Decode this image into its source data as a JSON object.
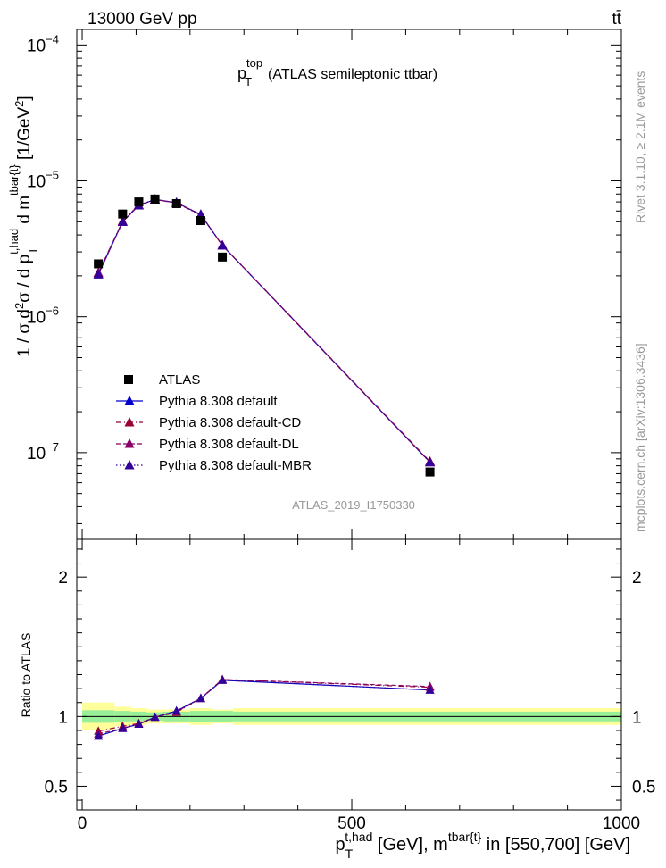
{
  "header": {
    "left": "13000 GeV pp",
    "right": "tt̄"
  },
  "side_text": {
    "rivet": "Rivet 3.1.10, ≥ 2.1M events",
    "mcplots": "mcplots.cern.ch [arXiv:1306.3436]"
  },
  "colors": {
    "data": "#000000",
    "default": "#0000cc",
    "cd": "#990033",
    "dl": "#880066",
    "mbr": "#330099",
    "band_inner": "#99ee99",
    "band_outer": "#ffff99",
    "watermark": "#999999"
  },
  "chart_data": [
    {
      "type": "scatter",
      "title_main": "p",
      "title_sup": "top",
      "title_sub": "T",
      "title_rest": "(ATLAS semileptonic ttbar)",
      "watermark": "ATLAS_2019_I1750330",
      "ylabel": "1 / σ d²σ / d p_T^{t,had} d m^{tbar{t}} [1/GeV²]",
      "yscale": "log",
      "ylim": [
        2.3e-08,
        0.00013
      ],
      "xlim": [
        -10,
        1000
      ],
      "y_ticks": [
        {
          "value": 0.0001,
          "label": "10",
          "exp": "−4"
        },
        {
          "value": 1e-05,
          "label": "10",
          "exp": "−5"
        },
        {
          "value": 1e-06,
          "label": "10",
          "exp": "−6"
        },
        {
          "value": 1e-07,
          "label": "10",
          "exp": "−7"
        }
      ],
      "legend_position": "middle-left",
      "series": [
        {
          "name": "ATLAS",
          "color": "#000000",
          "marker": "square",
          "x": [
            30,
            75,
            105,
            135,
            175,
            220,
            260,
            645
          ],
          "y": [
            2.45e-06,
            5.7e-06,
            7e-06,
            7.35e-06,
            6.8e-06,
            5.1e-06,
            2.75e-06,
            7.2e-08
          ]
        },
        {
          "name": "Pythia 8.308 default",
          "color": "#0000cc",
          "line": "solid",
          "marker": "triangle",
          "x": [
            30,
            75,
            105,
            135,
            175,
            220,
            260,
            645
          ],
          "y": [
            2.05e-06,
            5e-06,
            6.6e-06,
            7.3e-06,
            6.9e-06,
            5.65e-06,
            3.35e-06,
            8.5e-08
          ]
        },
        {
          "name": "Pythia 8.308 default-CD",
          "color": "#990033",
          "line": "dashdot",
          "marker": "triangle",
          "x": [
            30,
            75,
            105,
            135,
            175,
            220,
            260,
            645
          ],
          "y": [
            2.1e-06,
            5.05e-06,
            6.65e-06,
            7.3e-06,
            6.85e-06,
            5.6e-06,
            3.35e-06,
            8.6e-08
          ]
        },
        {
          "name": "Pythia 8.308 default-DL",
          "color": "#880066",
          "line": "dashed",
          "marker": "triangle",
          "x": [
            30,
            75,
            105,
            135,
            175,
            220,
            260,
            645
          ],
          "y": [
            2.1e-06,
            5e-06,
            6.6e-06,
            7.3e-06,
            6.9e-06,
            5.6e-06,
            3.35e-06,
            8.5e-08
          ]
        },
        {
          "name": "Pythia 8.308 default-MBR",
          "color": "#330099",
          "line": "dotted",
          "marker": "triangle",
          "x": [
            30,
            75,
            105,
            135,
            175,
            220,
            260,
            645
          ],
          "y": [
            2.05e-06,
            5e-06,
            6.6e-06,
            7.3e-06,
            6.9e-06,
            5.65e-06,
            3.35e-06,
            8.5e-08
          ]
        }
      ]
    },
    {
      "type": "line",
      "ylabel": "Ratio to ATLAS",
      "xlabel": "p_T^{t,had} [GeV], m^{tbar{t}} in [550,700] [GeV]",
      "xlim": [
        -10,
        1000
      ],
      "ylim": [
        0.33,
        2.27
      ],
      "x_ticks": [
        0,
        500,
        1000
      ],
      "y_ticks": [
        0.5,
        1,
        2
      ],
      "bands": {
        "edges": [
          0,
          60,
          90,
          120,
          150,
          200,
          240,
          280,
          1000
        ],
        "inner": [
          [
            0.955,
            1.045
          ],
          [
            0.96,
            1.04
          ],
          [
            0.965,
            1.035
          ],
          [
            0.97,
            1.03
          ],
          [
            0.965,
            1.035
          ],
          [
            0.96,
            1.04
          ],
          [
            0.96,
            1.04
          ],
          [
            0.965,
            1.035
          ]
        ],
        "outer": [
          [
            0.9,
            1.1
          ],
          [
            0.93,
            1.07
          ],
          [
            0.94,
            1.06
          ],
          [
            0.95,
            1.05
          ],
          [
            0.95,
            1.05
          ],
          [
            0.94,
            1.06
          ],
          [
            0.95,
            1.05
          ],
          [
            0.94,
            1.06
          ]
        ]
      },
      "series": [
        {
          "name": "Pythia 8.308 default",
          "color": "#0000cc",
          "line": "solid",
          "x": [
            30,
            75,
            105,
            135,
            175,
            220,
            260,
            645
          ],
          "y": [
            0.86,
            0.915,
            0.945,
            0.995,
            1.04,
            1.13,
            1.26,
            1.19
          ]
        },
        {
          "name": "Pythia 8.308 default-CD",
          "color": "#990033",
          "line": "dashdot",
          "x": [
            30,
            75,
            105,
            135,
            175,
            220,
            260,
            645
          ],
          "y": [
            0.895,
            0.93,
            0.95,
            0.995,
            1.03,
            1.13,
            1.265,
            1.21
          ]
        },
        {
          "name": "Pythia 8.308 default-DL",
          "color": "#880066",
          "line": "dashed",
          "x": [
            30,
            75,
            105,
            135,
            175,
            220,
            260,
            645
          ],
          "y": [
            0.875,
            0.915,
            0.945,
            0.995,
            1.035,
            1.13,
            1.265,
            1.215
          ]
        },
        {
          "name": "Pythia 8.308 default-MBR",
          "color": "#330099",
          "line": "dotted",
          "x": [
            30,
            75,
            105,
            135,
            175,
            220,
            260,
            645
          ],
          "y": [
            0.86,
            0.915,
            0.945,
            0.995,
            1.04,
            1.13,
            1.26,
            1.19
          ]
        }
      ]
    }
  ]
}
